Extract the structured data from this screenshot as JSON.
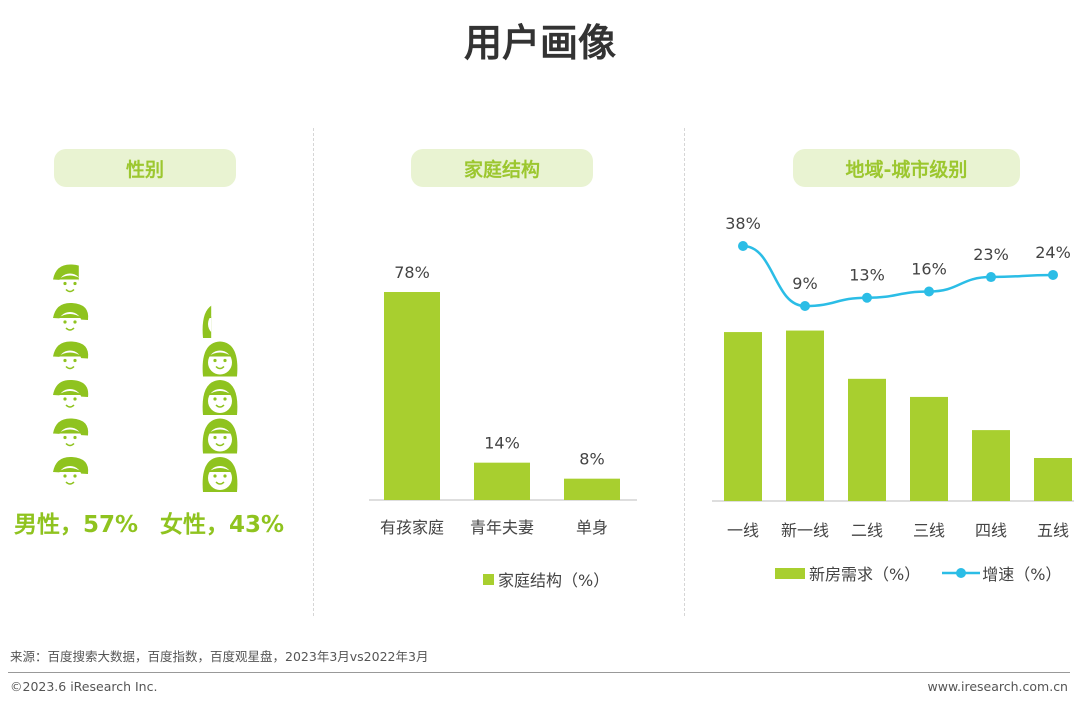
{
  "page": {
    "title": "用户画像"
  },
  "panels": {
    "gender": {
      "heading": "性别"
    },
    "family": {
      "heading": "家庭结构"
    },
    "region": {
      "heading": "地域-城市级别"
    }
  },
  "colors": {
    "bar": "#a8cf2f",
    "line": "#2bbde6",
    "accent_text": "#8fc31f",
    "pill_bg": "#e9f3d2"
  },
  "chart_data": [
    {
      "type": "pictogram",
      "series": [
        {
          "name": "男性",
          "value": 57,
          "label": "男性，57%",
          "icon": "boy-face-icon"
        },
        {
          "name": "女性",
          "value": 43,
          "label": "女性，43%",
          "icon": "girl-face-icon"
        }
      ]
    },
    {
      "type": "bar",
      "categories": [
        "有孩家庭",
        "青年夫妻",
        "单身"
      ],
      "values": [
        78,
        14,
        8
      ],
      "value_labels": [
        "78%",
        "14%",
        "8%"
      ],
      "legend": "家庭结构（%）",
      "ylim": [
        0,
        78
      ]
    },
    {
      "type": "bar+line",
      "categories": [
        "一线",
        "新一线",
        "二线",
        "三线",
        "四线",
        "五线"
      ],
      "series": [
        {
          "name": "新房需求（%）",
          "kind": "bar",
          "values": [
            22.4,
            22.6,
            16.2,
            13.8,
            9.4,
            5.7
          ]
        },
        {
          "name": "增速（%）",
          "kind": "line",
          "values": [
            38,
            9,
            13,
            16,
            23,
            24
          ],
          "value_labels": [
            "38%",
            "9%",
            "13%",
            "16%",
            "23%",
            "24%"
          ]
        }
      ],
      "legend_placement": "bottom"
    }
  ],
  "footer": {
    "source": "来源：百度搜索大数据，百度指数，百度观星盘，2023年3月vs2022年3月",
    "copyright": "©2023.6 iResearch Inc.",
    "url": "www.iresearch.com.cn"
  }
}
